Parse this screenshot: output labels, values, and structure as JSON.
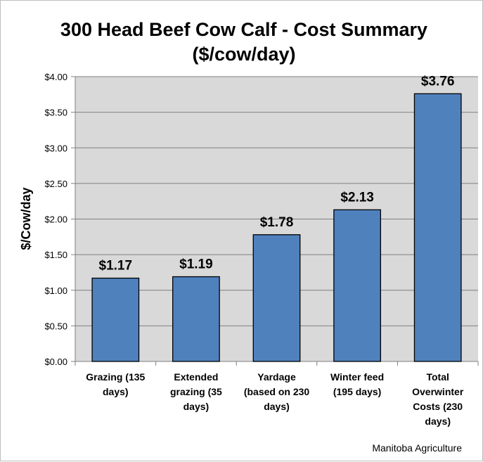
{
  "chart_data": {
    "type": "bar",
    "title": "300 Head Beef Cow Calf - Cost Summary",
    "subtitle": "($/cow/day)",
    "ylabel": "$/Cow/day",
    "xlabel": "",
    "categories": [
      [
        "Grazing (135",
        "days)"
      ],
      [
        "Extended",
        "grazing (35",
        "days)"
      ],
      [
        "Yardage",
        "(based on 230",
        "days)"
      ],
      [
        "Winter feed",
        "(195 days)"
      ],
      [
        "Total",
        "Overwinter",
        "Costs (230",
        "days)"
      ]
    ],
    "values": [
      1.17,
      1.19,
      1.78,
      2.13,
      3.76
    ],
    "data_labels": [
      "$1.17",
      "$1.19",
      "$1.78",
      "$2.13",
      "$3.76"
    ],
    "ylim": [
      0,
      4
    ],
    "yticks": [
      0,
      0.5,
      1,
      1.5,
      2,
      2.5,
      3,
      3.5,
      4
    ],
    "ytick_labels": [
      "$0.00",
      "$0.50",
      "$1.00",
      "$1.50",
      "$2.00",
      "$2.50",
      "$3.00",
      "$3.50",
      "$4.00"
    ],
    "grid": true,
    "legend": "none",
    "source": "Manitoba Agriculture",
    "colors": {
      "bar": "#4f81bd",
      "plot_bg": "#d9d9d9",
      "grid": "#808080",
      "axis": "#808080"
    }
  }
}
